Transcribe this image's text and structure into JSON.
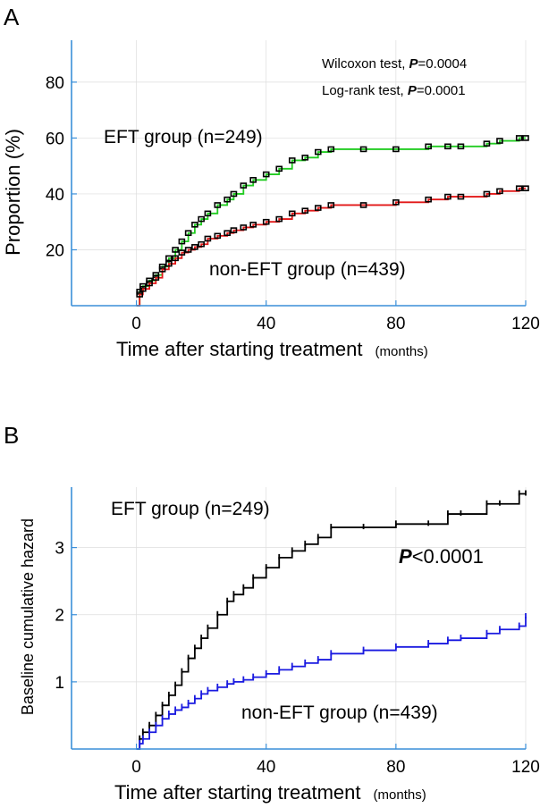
{
  "chart_data": [
    {
      "type": "line",
      "panel": "A",
      "xlabel": "Time after starting treatment",
      "x_unit": "(months)",
      "ylabel": "Proportion (%)",
      "xlim": [
        -20,
        120
      ],
      "ylim": [
        0,
        95
      ],
      "x_ticks": [
        0,
        40,
        80,
        120
      ],
      "y_ticks": [
        20,
        40,
        60,
        80
      ],
      "grid": true,
      "annotations": {
        "wilcoxon": {
          "prefix": "Wilcoxon test, ",
          "p": "P",
          "value": "=0.0004"
        },
        "logrank": {
          "prefix": "Log-rank test, ",
          "p": "P",
          "value": "=0.0001"
        }
      },
      "series": [
        {
          "name": "EFT group (n=249)",
          "color": "#22cc22",
          "censor_color": "#000000",
          "x": [
            0,
            1,
            2,
            4,
            6,
            8,
            10,
            12,
            14,
            16,
            18,
            20,
            22,
            25,
            28,
            30,
            33,
            36,
            40,
            44,
            48,
            52,
            56,
            60,
            70,
            80,
            90,
            96,
            100,
            108,
            112,
            118,
            120
          ],
          "y": [
            0,
            5,
            7,
            9,
            11,
            14,
            17,
            20,
            23,
            26,
            29,
            31,
            33,
            36,
            38,
            40,
            43,
            45,
            47,
            49,
            52,
            53,
            55,
            56,
            56,
            56,
            57,
            57,
            57,
            58,
            59,
            60,
            60
          ]
        },
        {
          "name": "non-EFT group (n=439)",
          "color": "#e21818",
          "censor_color": "#000000",
          "x": [
            0,
            1,
            2,
            4,
            6,
            8,
            10,
            12,
            14,
            16,
            18,
            20,
            22,
            25,
            28,
            30,
            33,
            36,
            40,
            44,
            48,
            52,
            56,
            60,
            70,
            80,
            90,
            96,
            100,
            108,
            112,
            118,
            120
          ],
          "y": [
            0,
            4,
            6,
            8,
            10,
            13,
            15,
            17,
            19,
            20,
            21,
            22,
            24,
            25,
            26,
            27,
            28,
            29,
            30,
            31,
            33,
            34,
            35,
            36,
            36,
            37,
            38,
            39,
            39,
            40,
            41,
            42,
            42
          ]
        }
      ]
    },
    {
      "type": "line",
      "panel": "B",
      "xlabel": "Time after starting treatment",
      "x_unit": "(months)",
      "ylabel": "Baseline cumulative hazard",
      "xlim": [
        -20,
        120
      ],
      "ylim": [
        0,
        3.9
      ],
      "x_ticks": [
        0,
        40,
        80,
        120
      ],
      "y_ticks": [
        1,
        2,
        3
      ],
      "grid": true,
      "annotations": {
        "p_value": {
          "p": "P",
          "value": "<0.0001"
        }
      },
      "series": [
        {
          "name": "EFT group (n=249)",
          "color": "#000000",
          "censor_color": "#000000",
          "x": [
            0,
            1,
            2,
            4,
            6,
            8,
            10,
            12,
            14,
            16,
            18,
            20,
            22,
            25,
            28,
            30,
            33,
            36,
            40,
            44,
            48,
            52,
            56,
            60,
            70,
            80,
            90,
            96,
            100,
            108,
            112,
            118,
            120
          ],
          "y": [
            0,
            0.15,
            0.25,
            0.35,
            0.5,
            0.65,
            0.8,
            0.95,
            1.15,
            1.35,
            1.5,
            1.65,
            1.8,
            2.0,
            2.2,
            2.3,
            2.4,
            2.55,
            2.7,
            2.85,
            2.95,
            3.05,
            3.15,
            3.3,
            3.3,
            3.35,
            3.35,
            3.5,
            3.5,
            3.65,
            3.65,
            3.8,
            3.8
          ]
        },
        {
          "name": "non-EFT group (n=439)",
          "color": "#1a1ae0",
          "censor_color": "#1a1ae0",
          "x": [
            0,
            1,
            2,
            4,
            6,
            8,
            10,
            12,
            14,
            16,
            18,
            20,
            22,
            25,
            28,
            30,
            33,
            36,
            40,
            44,
            48,
            52,
            56,
            60,
            70,
            80,
            90,
            96,
            100,
            108,
            112,
            118,
            120
          ],
          "y": [
            0,
            0.08,
            0.15,
            0.25,
            0.35,
            0.45,
            0.52,
            0.58,
            0.62,
            0.68,
            0.75,
            0.82,
            0.87,
            0.92,
            0.97,
            1.0,
            1.03,
            1.07,
            1.12,
            1.18,
            1.23,
            1.28,
            1.33,
            1.42,
            1.47,
            1.52,
            1.57,
            1.62,
            1.65,
            1.72,
            1.78,
            1.83,
            1.97
          ]
        }
      ]
    }
  ]
}
